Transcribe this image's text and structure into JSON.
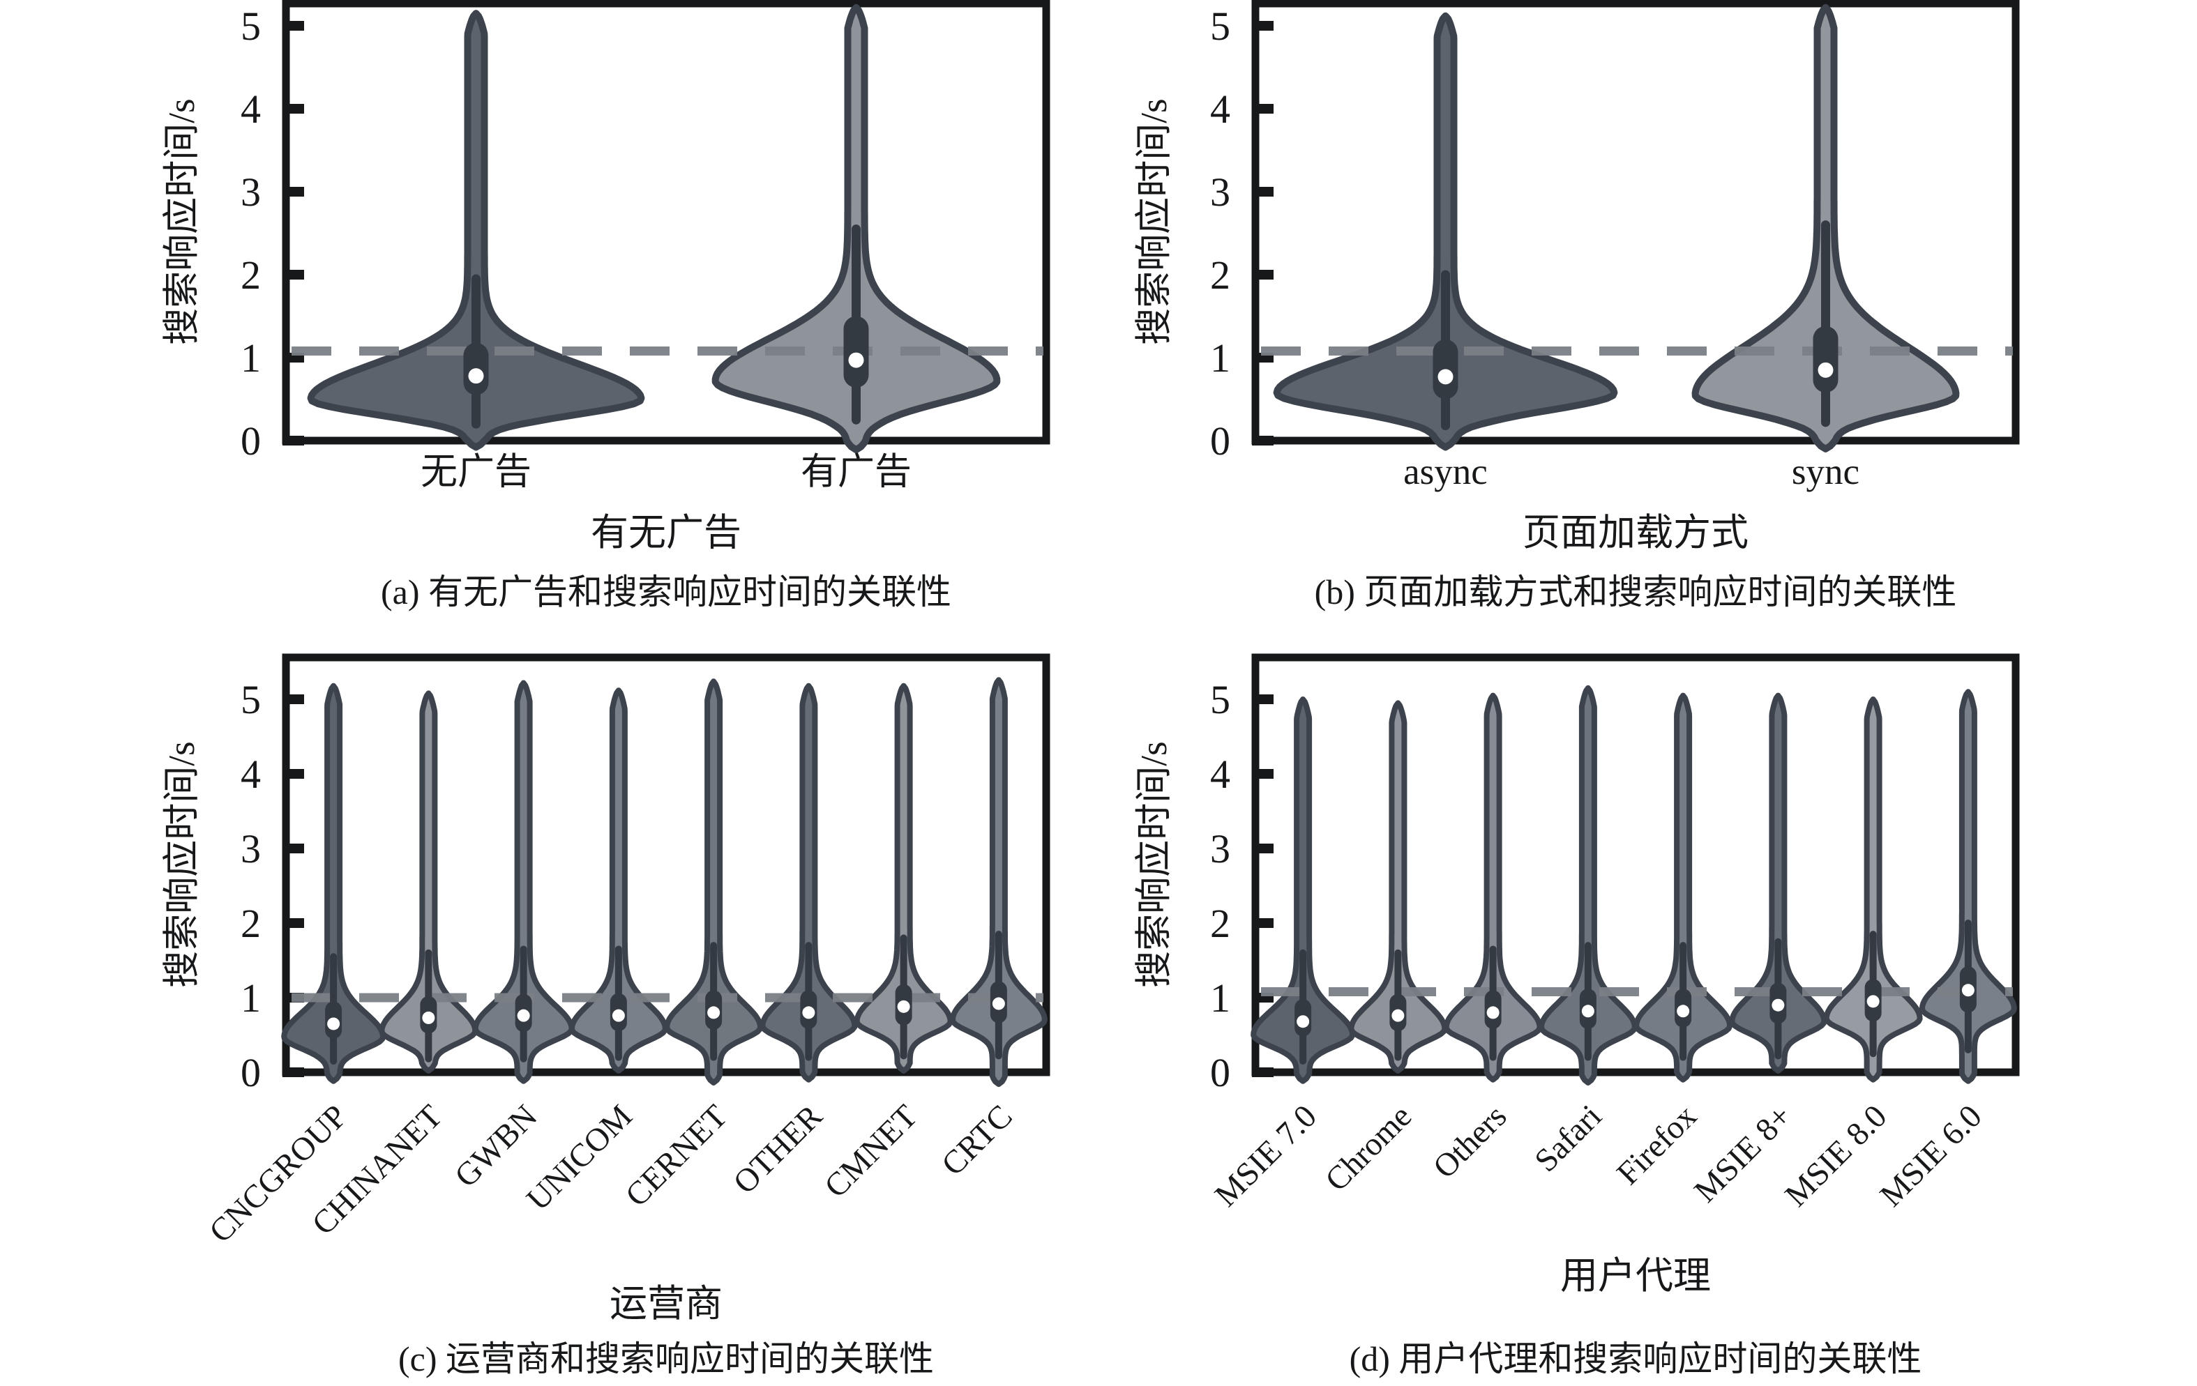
{
  "figure": {
    "background": "#ffffff",
    "axis_color": "#17181a",
    "violin_outline_color": "#3d434c",
    "inner_box_color": "#343a42",
    "median_dot_color": "#ffffff",
    "reference_line_color": "#7b8086"
  },
  "chart_data": [
    {
      "id": "a",
      "type": "violin",
      "caption": "(a) 有无广告和搜索响应时间的关联性",
      "xlabel": "有无广告",
      "ylabel": "搜索响应时间/s",
      "ylim": [
        0,
        5.27
      ],
      "yticks": [
        0,
        1,
        2,
        3,
        4,
        5
      ],
      "grid": false,
      "legend": null,
      "dashed_reference_line_y": 1.08,
      "rotated_tick_labels": false,
      "categories": [
        "无广告",
        "有广告"
      ],
      "violins": [
        {
          "category": "无广告",
          "median": 0.78,
          "q1": 0.55,
          "q3": 1.18,
          "whisker_low": 0.2,
          "whisker_high": 1.95,
          "density_peak_at": 0.5,
          "max_value": 5.15,
          "min_value": -0.08,
          "halfwidth": 225,
          "s1": 0.18,
          "s2": 0.42,
          "spike": 12,
          "fill": "#5d636c"
        },
        {
          "category": "有广告",
          "median": 0.97,
          "q1": 0.64,
          "q3": 1.5,
          "whisker_low": 0.25,
          "whisker_high": 2.55,
          "density_peak_at": 0.72,
          "max_value": 5.22,
          "min_value": -0.11,
          "halfwidth": 190,
          "s1": 0.25,
          "s2": 0.5,
          "spike": 12,
          "fill": "#8f949b"
        }
      ]
    },
    {
      "id": "b",
      "type": "violin",
      "caption": "(b) 页面加载方式和搜索响应时间的关联性",
      "xlabel": "页面加载方式",
      "ylabel": "搜索响应时间/s",
      "ylim": [
        0,
        5.27
      ],
      "yticks": [
        0,
        1,
        2,
        3,
        4,
        5
      ],
      "grid": false,
      "legend": null,
      "dashed_reference_line_y": 1.08,
      "rotated_tick_labels": false,
      "categories": [
        "async",
        "sync"
      ],
      "violins": [
        {
          "category": "async",
          "median": 0.77,
          "q1": 0.5,
          "q3": 1.22,
          "whisker_low": 0.18,
          "whisker_high": 2.0,
          "density_peak_at": 0.57,
          "max_value": 5.12,
          "min_value": -0.08,
          "halfwidth": 230,
          "s1": 0.2,
          "s2": 0.4,
          "spike": 12,
          "fill": "#5d636c"
        },
        {
          "category": "sync",
          "median": 0.85,
          "q1": 0.58,
          "q3": 1.38,
          "whisker_low": 0.22,
          "whisker_high": 2.6,
          "density_peak_at": 0.55,
          "max_value": 5.22,
          "min_value": -0.1,
          "halfwidth": 175,
          "s1": 0.2,
          "s2": 0.58,
          "spike": 12,
          "fill": "#92979e"
        }
      ]
    },
    {
      "id": "c",
      "type": "violin",
      "caption": "(c) 运营商和搜索响应时间的关联性",
      "xlabel": "运营商",
      "ylabel": "搜索响应时间/s",
      "ylim": [
        0,
        5.56
      ],
      "yticks": [
        0,
        1,
        2,
        3,
        4,
        5
      ],
      "grid": false,
      "legend": null,
      "dashed_reference_line_y": 1.0,
      "rotated_tick_labels": true,
      "categories": [
        "CNCGROUP",
        "CHINANET",
        "GWBN",
        "UNICOM",
        "CERNET",
        "OTHER",
        "CMNET",
        "CRTC"
      ],
      "violins": [
        {
          "category": "CNCGROUP",
          "median": 0.65,
          "q1": 0.45,
          "q3": 0.95,
          "whisker_low": 0.15,
          "whisker_high": 1.55,
          "density_peak_at": 0.47,
          "max_value": 5.18,
          "min_value": -0.12,
          "halfwidth": 62,
          "s1": 0.15,
          "s2": 0.32,
          "spike": 9,
          "fill": "#5d636c"
        },
        {
          "category": "CHINANET",
          "median": 0.73,
          "q1": 0.52,
          "q3": 1.02,
          "whisker_low": 0.18,
          "whisker_high": 1.6,
          "density_peak_at": 0.55,
          "max_value": 5.08,
          "min_value": 0.02,
          "halfwidth": 58,
          "s1": 0.15,
          "s2": 0.32,
          "spike": 9,
          "fill": "#8f949b"
        },
        {
          "category": "GWBN",
          "median": 0.76,
          "q1": 0.54,
          "q3": 1.05,
          "whisker_low": 0.18,
          "whisker_high": 1.65,
          "density_peak_at": 0.58,
          "max_value": 5.22,
          "min_value": -0.12,
          "halfwidth": 60,
          "s1": 0.15,
          "s2": 0.32,
          "spike": 9,
          "fill": "#767c85"
        },
        {
          "category": "UNICOM",
          "median": 0.76,
          "q1": 0.55,
          "q3": 1.06,
          "whisker_low": 0.2,
          "whisker_high": 1.65,
          "density_peak_at": 0.58,
          "max_value": 5.12,
          "min_value": 0.02,
          "halfwidth": 58,
          "s1": 0.15,
          "s2": 0.32,
          "spike": 9,
          "fill": "#7a8089"
        },
        {
          "category": "CERNET",
          "median": 0.8,
          "q1": 0.57,
          "q3": 1.1,
          "whisker_low": 0.2,
          "whisker_high": 1.7,
          "density_peak_at": 0.6,
          "max_value": 5.24,
          "min_value": -0.14,
          "halfwidth": 58,
          "s1": 0.15,
          "s2": 0.32,
          "spike": 9,
          "fill": "#71777f"
        },
        {
          "category": "OTHER",
          "median": 0.8,
          "q1": 0.58,
          "q3": 1.1,
          "whisker_low": 0.2,
          "whisker_high": 1.7,
          "density_peak_at": 0.62,
          "max_value": 5.18,
          "min_value": -0.1,
          "halfwidth": 57,
          "s1": 0.15,
          "s2": 0.32,
          "spike": 9,
          "fill": "#666c75"
        },
        {
          "category": "CMNET",
          "median": 0.88,
          "q1": 0.63,
          "q3": 1.18,
          "whisker_low": 0.22,
          "whisker_high": 1.8,
          "density_peak_at": 0.68,
          "max_value": 5.18,
          "min_value": 0.02,
          "halfwidth": 58,
          "s1": 0.15,
          "s2": 0.32,
          "spike": 9,
          "fill": "#90959c"
        },
        {
          "category": "CRTC",
          "median": 0.92,
          "q1": 0.66,
          "q3": 1.22,
          "whisker_low": 0.22,
          "whisker_high": 1.85,
          "density_peak_at": 0.7,
          "max_value": 5.26,
          "min_value": -0.16,
          "halfwidth": 57,
          "s1": 0.15,
          "s2": 0.32,
          "spike": 9,
          "fill": "#7a8089"
        }
      ]
    },
    {
      "id": "d",
      "type": "violin",
      "caption": "(d) 用户代理和搜索响应时间的关联性",
      "xlabel": "用户代理",
      "ylabel": "搜索响应时间/s",
      "ylim": [
        0,
        5.56
      ],
      "yticks": [
        0,
        1,
        2,
        3,
        4,
        5
      ],
      "grid": false,
      "legend": null,
      "dashed_reference_line_y": 1.08,
      "rotated_tick_labels": true,
      "categories": [
        "MSIE 7.0",
        "Chrome",
        "Others",
        "Safari",
        "Firefox",
        "MSIE 8+",
        "MSIE 8.0",
        "MSIE 6.0"
      ],
      "violins": [
        {
          "category": "MSIE 7.0",
          "median": 0.68,
          "q1": 0.48,
          "q3": 0.98,
          "whisker_low": 0.15,
          "whisker_high": 1.6,
          "density_peak_at": 0.5,
          "max_value": 5.0,
          "min_value": -0.12,
          "halfwidth": 62,
          "s1": 0.15,
          "s2": 0.32,
          "spike": 9,
          "fill": "#5d636c"
        },
        {
          "category": "Chrome",
          "median": 0.76,
          "q1": 0.55,
          "q3": 1.05,
          "whisker_low": 0.2,
          "whisker_high": 1.6,
          "density_peak_at": 0.58,
          "max_value": 4.95,
          "min_value": 0.02,
          "halfwidth": 58,
          "s1": 0.15,
          "s2": 0.32,
          "spike": 9,
          "fill": "#8f949b"
        },
        {
          "category": "Others",
          "median": 0.8,
          "q1": 0.58,
          "q3": 1.1,
          "whisker_low": 0.2,
          "whisker_high": 1.65,
          "density_peak_at": 0.6,
          "max_value": 5.05,
          "min_value": -0.1,
          "halfwidth": 58,
          "s1": 0.15,
          "s2": 0.32,
          "spike": 9,
          "fill": "#888d95"
        },
        {
          "category": "Safari",
          "median": 0.82,
          "q1": 0.58,
          "q3": 1.12,
          "whisker_low": 0.2,
          "whisker_high": 1.7,
          "density_peak_at": 0.6,
          "max_value": 5.15,
          "min_value": -0.14,
          "halfwidth": 58,
          "s1": 0.15,
          "s2": 0.32,
          "spike": 9,
          "fill": "#6e747d"
        },
        {
          "category": "Firefox",
          "median": 0.82,
          "q1": 0.6,
          "q3": 1.12,
          "whisker_low": 0.2,
          "whisker_high": 1.7,
          "density_peak_at": 0.62,
          "max_value": 5.05,
          "min_value": -0.1,
          "halfwidth": 58,
          "s1": 0.15,
          "s2": 0.32,
          "spike": 9,
          "fill": "#767c85"
        },
        {
          "category": "MSIE 8+",
          "median": 0.9,
          "q1": 0.65,
          "q3": 1.2,
          "whisker_low": 0.22,
          "whisker_high": 1.75,
          "density_peak_at": 0.68,
          "max_value": 5.05,
          "min_value": 0.02,
          "halfwidth": 57,
          "s1": 0.15,
          "s2": 0.32,
          "spike": 9,
          "fill": "#666c75"
        },
        {
          "category": "MSIE 8.0",
          "median": 0.95,
          "q1": 0.68,
          "q3": 1.25,
          "whisker_low": 0.25,
          "whisker_high": 1.85,
          "density_peak_at": 0.72,
          "max_value": 5.0,
          "min_value": -0.1,
          "halfwidth": 58,
          "s1": 0.15,
          "s2": 0.32,
          "spike": 9,
          "fill": "#979ca3"
        },
        {
          "category": "MSIE 6.0",
          "median": 1.1,
          "q1": 0.8,
          "q3": 1.42,
          "whisker_low": 0.3,
          "whisker_high": 2.0,
          "density_peak_at": 0.85,
          "max_value": 5.1,
          "min_value": -0.12,
          "halfwidth": 57,
          "s1": 0.15,
          "s2": 0.32,
          "spike": 9,
          "fill": "#7a8089"
        }
      ]
    }
  ]
}
